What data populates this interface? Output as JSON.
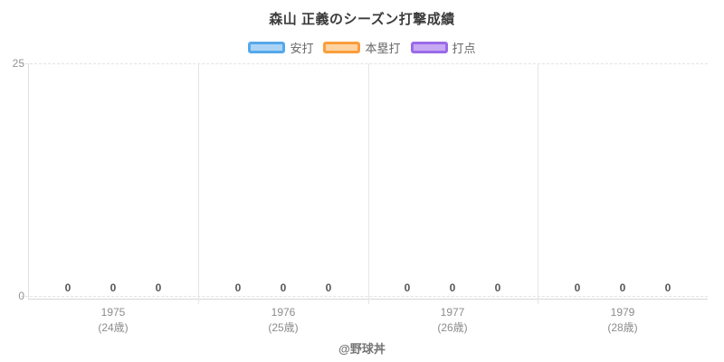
{
  "page": {
    "title": "森山 正義のシーズン打撃成績"
  },
  "footer": {
    "credit": "@野球丼"
  },
  "colors": {
    "background": "#ffffff",
    "title_text": "#3c3c3c",
    "legend_text": "#666666",
    "grid_dashed": "#e2e2e2",
    "grid_solid": "#e5e5e5",
    "axis_border": "#d8d8d8",
    "tick_label": "#949494",
    "x_label": "#8c8c8c",
    "value_label": "#565656",
    "footer_text": "#757575"
  },
  "chart_data": {
    "type": "bar",
    "title": "森山 正義のシーズン打撃成績",
    "categories": [
      "1975",
      "1976",
      "1977",
      "1979"
    ],
    "category_sublabels": [
      "(24歳)",
      "(25歳)",
      "(26歳)",
      "(28歳)"
    ],
    "series": [
      {
        "name": "安打",
        "slug": "hits",
        "border_color": "#56a8ea",
        "fill_color": "#abd3f6",
        "values": [
          0,
          0,
          0,
          0
        ]
      },
      {
        "name": "本塁打",
        "slug": "home-runs",
        "border_color": "#fa9e3d",
        "fill_color": "#fdd3a2",
        "values": [
          0,
          0,
          0,
          0
        ]
      },
      {
        "name": "打点",
        "slug": "rbi",
        "border_color": "#9a6be9",
        "fill_color": "#c6a9f2",
        "values": [
          0,
          0,
          0,
          0
        ]
      }
    ],
    "ylim": [
      0,
      25
    ],
    "yticks": [
      25,
      0
    ],
    "xlabel": "",
    "ylabel": "",
    "legend_position": "top",
    "grid": true,
    "value_labels_shown": true
  }
}
